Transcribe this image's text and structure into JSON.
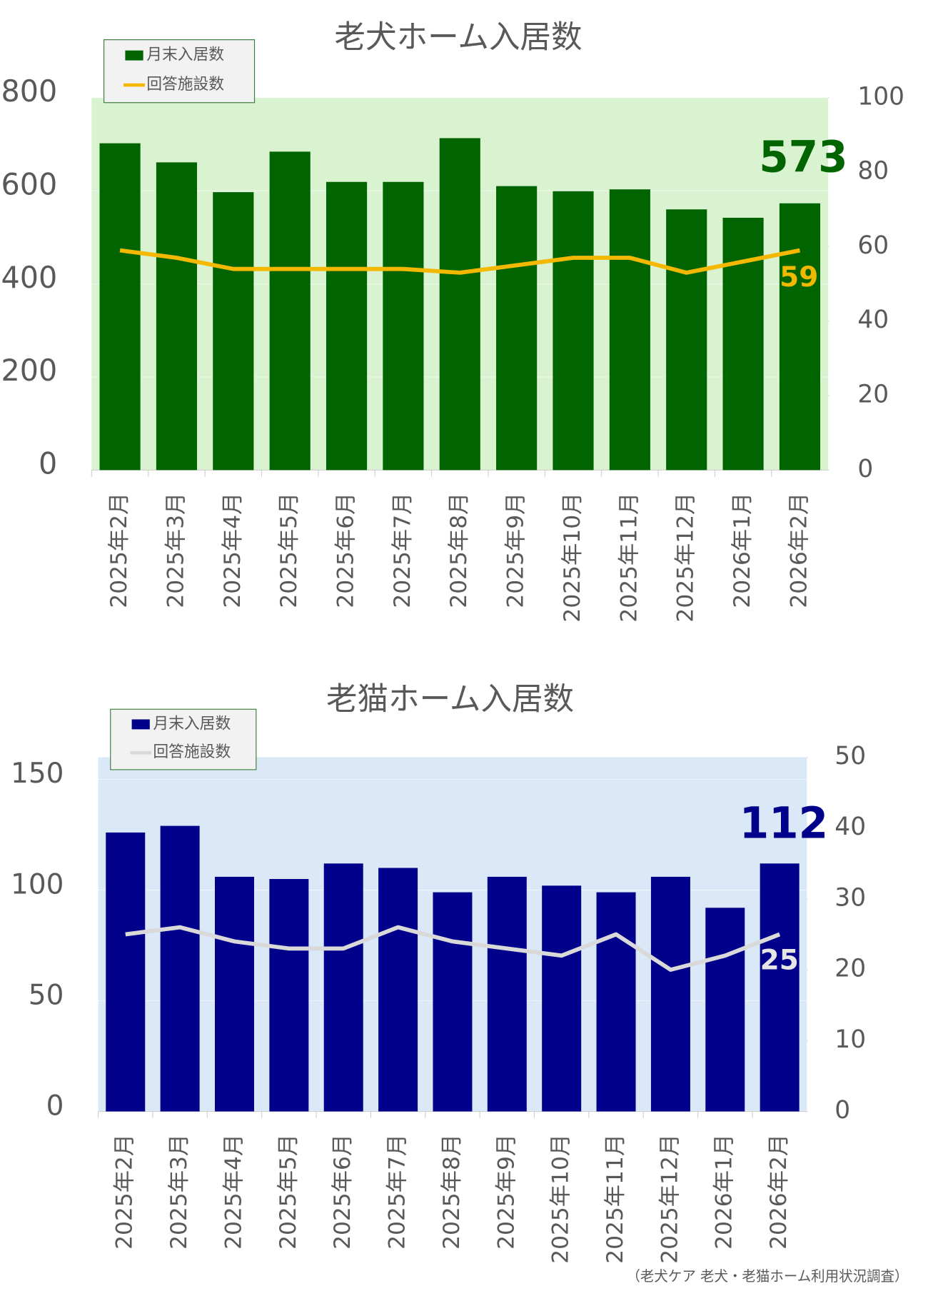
{
  "chart_data": [
    {
      "type": "combo",
      "title": "老犬ホーム入居数",
      "categories": [
        "2025年2月",
        "2025年3月",
        "2025年4月",
        "2025年5月",
        "2025年6月",
        "2025年7月",
        "2025年8月",
        "2025年9月",
        "2025年10月",
        "2025年11月",
        "2025年12月",
        "2026年1月",
        "2026年2月"
      ],
      "series": [
        {
          "name": "月末入居数",
          "type": "bar",
          "color": "#006400",
          "values": [
            702,
            661,
            597,
            684,
            619,
            619,
            713,
            610,
            599,
            603,
            560,
            542,
            573
          ]
        },
        {
          "name": "回答施設数",
          "type": "line",
          "axis": "y2",
          "color": "#f5b800",
          "values": [
            59,
            57,
            54,
            54,
            54,
            54,
            53,
            55,
            57,
            57,
            53,
            56,
            59
          ]
        }
      ],
      "ylim": [
        0,
        800
      ],
      "yticks": [
        0,
        200,
        400,
        600,
        800
      ],
      "y2lim": [
        0,
        100
      ],
      "y2ticks": [
        0,
        20,
        40,
        60,
        80,
        100
      ],
      "grid": true,
      "legend": "top-left",
      "plot_background": "#d9f2d0"
    },
    {
      "type": "combo",
      "title": "老猫ホーム入居数",
      "categories": [
        "2025年2月",
        "2025年3月",
        "2025年4月",
        "2025年5月",
        "2025年6月",
        "2025年7月",
        "2025年8月",
        "2025年9月",
        "2025年10月",
        "2025年11月",
        "2025年12月",
        "2026年1月",
        "2026年2月"
      ],
      "series": [
        {
          "name": "月末入居数",
          "type": "bar",
          "color": "#00008b",
          "values": [
            126,
            129,
            106,
            105,
            112,
            110,
            99,
            106,
            102,
            99,
            106,
            92,
            112
          ]
        },
        {
          "name": "回答施設数",
          "type": "line",
          "axis": "y2",
          "color": "#d9d9d9",
          "values": [
            25,
            26,
            24,
            23,
            23,
            26,
            24,
            23,
            22,
            25,
            20,
            22,
            25
          ]
        }
      ],
      "ylim": [
        0,
        160
      ],
      "yticks": [
        0,
        50,
        100,
        150
      ],
      "y2lim": [
        0,
        50
      ],
      "y2ticks": [
        0,
        10,
        20,
        30,
        40,
        50
      ],
      "grid": true,
      "legend": "top-left",
      "plot_background": "#dae8f8"
    }
  ],
  "footnote": "（老犬ケア 老犬・老猫ホーム利用状況調査）"
}
